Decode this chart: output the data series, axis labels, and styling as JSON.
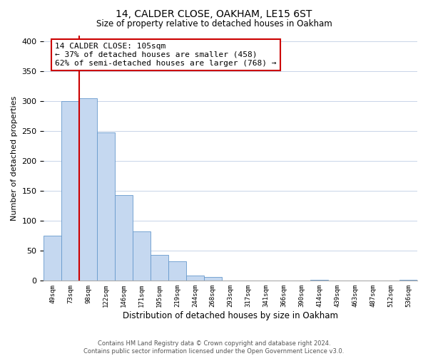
{
  "title": "14, CALDER CLOSE, OAKHAM, LE15 6ST",
  "subtitle": "Size of property relative to detached houses in Oakham",
  "xlabel": "Distribution of detached houses by size in Oakham",
  "ylabel": "Number of detached properties",
  "bin_labels": [
    "49sqm",
    "73sqm",
    "98sqm",
    "122sqm",
    "146sqm",
    "171sqm",
    "195sqm",
    "219sqm",
    "244sqm",
    "268sqm",
    "293sqm",
    "317sqm",
    "341sqm",
    "366sqm",
    "390sqm",
    "414sqm",
    "439sqm",
    "463sqm",
    "487sqm",
    "512sqm",
    "536sqm"
  ],
  "bin_values": [
    75,
    300,
    305,
    248,
    143,
    83,
    43,
    32,
    9,
    6,
    0,
    0,
    0,
    0,
    0,
    2,
    0,
    0,
    0,
    0,
    2
  ],
  "bar_color": "#c5d8f0",
  "bar_edge_color": "#6699cc",
  "property_line_color": "#cc0000",
  "annotation_text": "14 CALDER CLOSE: 105sqm\n← 37% of detached houses are smaller (458)\n62% of semi-detached houses are larger (768) →",
  "annotation_box_edge_color": "#cc0000",
  "ylim": [
    0,
    410
  ],
  "yticks": [
    0,
    50,
    100,
    150,
    200,
    250,
    300,
    350,
    400
  ],
  "footer_line1": "Contains HM Land Registry data © Crown copyright and database right 2024.",
  "footer_line2": "Contains public sector information licensed under the Open Government Licence v3.0.",
  "background_color": "#ffffff",
  "grid_color": "#c8d4e8"
}
